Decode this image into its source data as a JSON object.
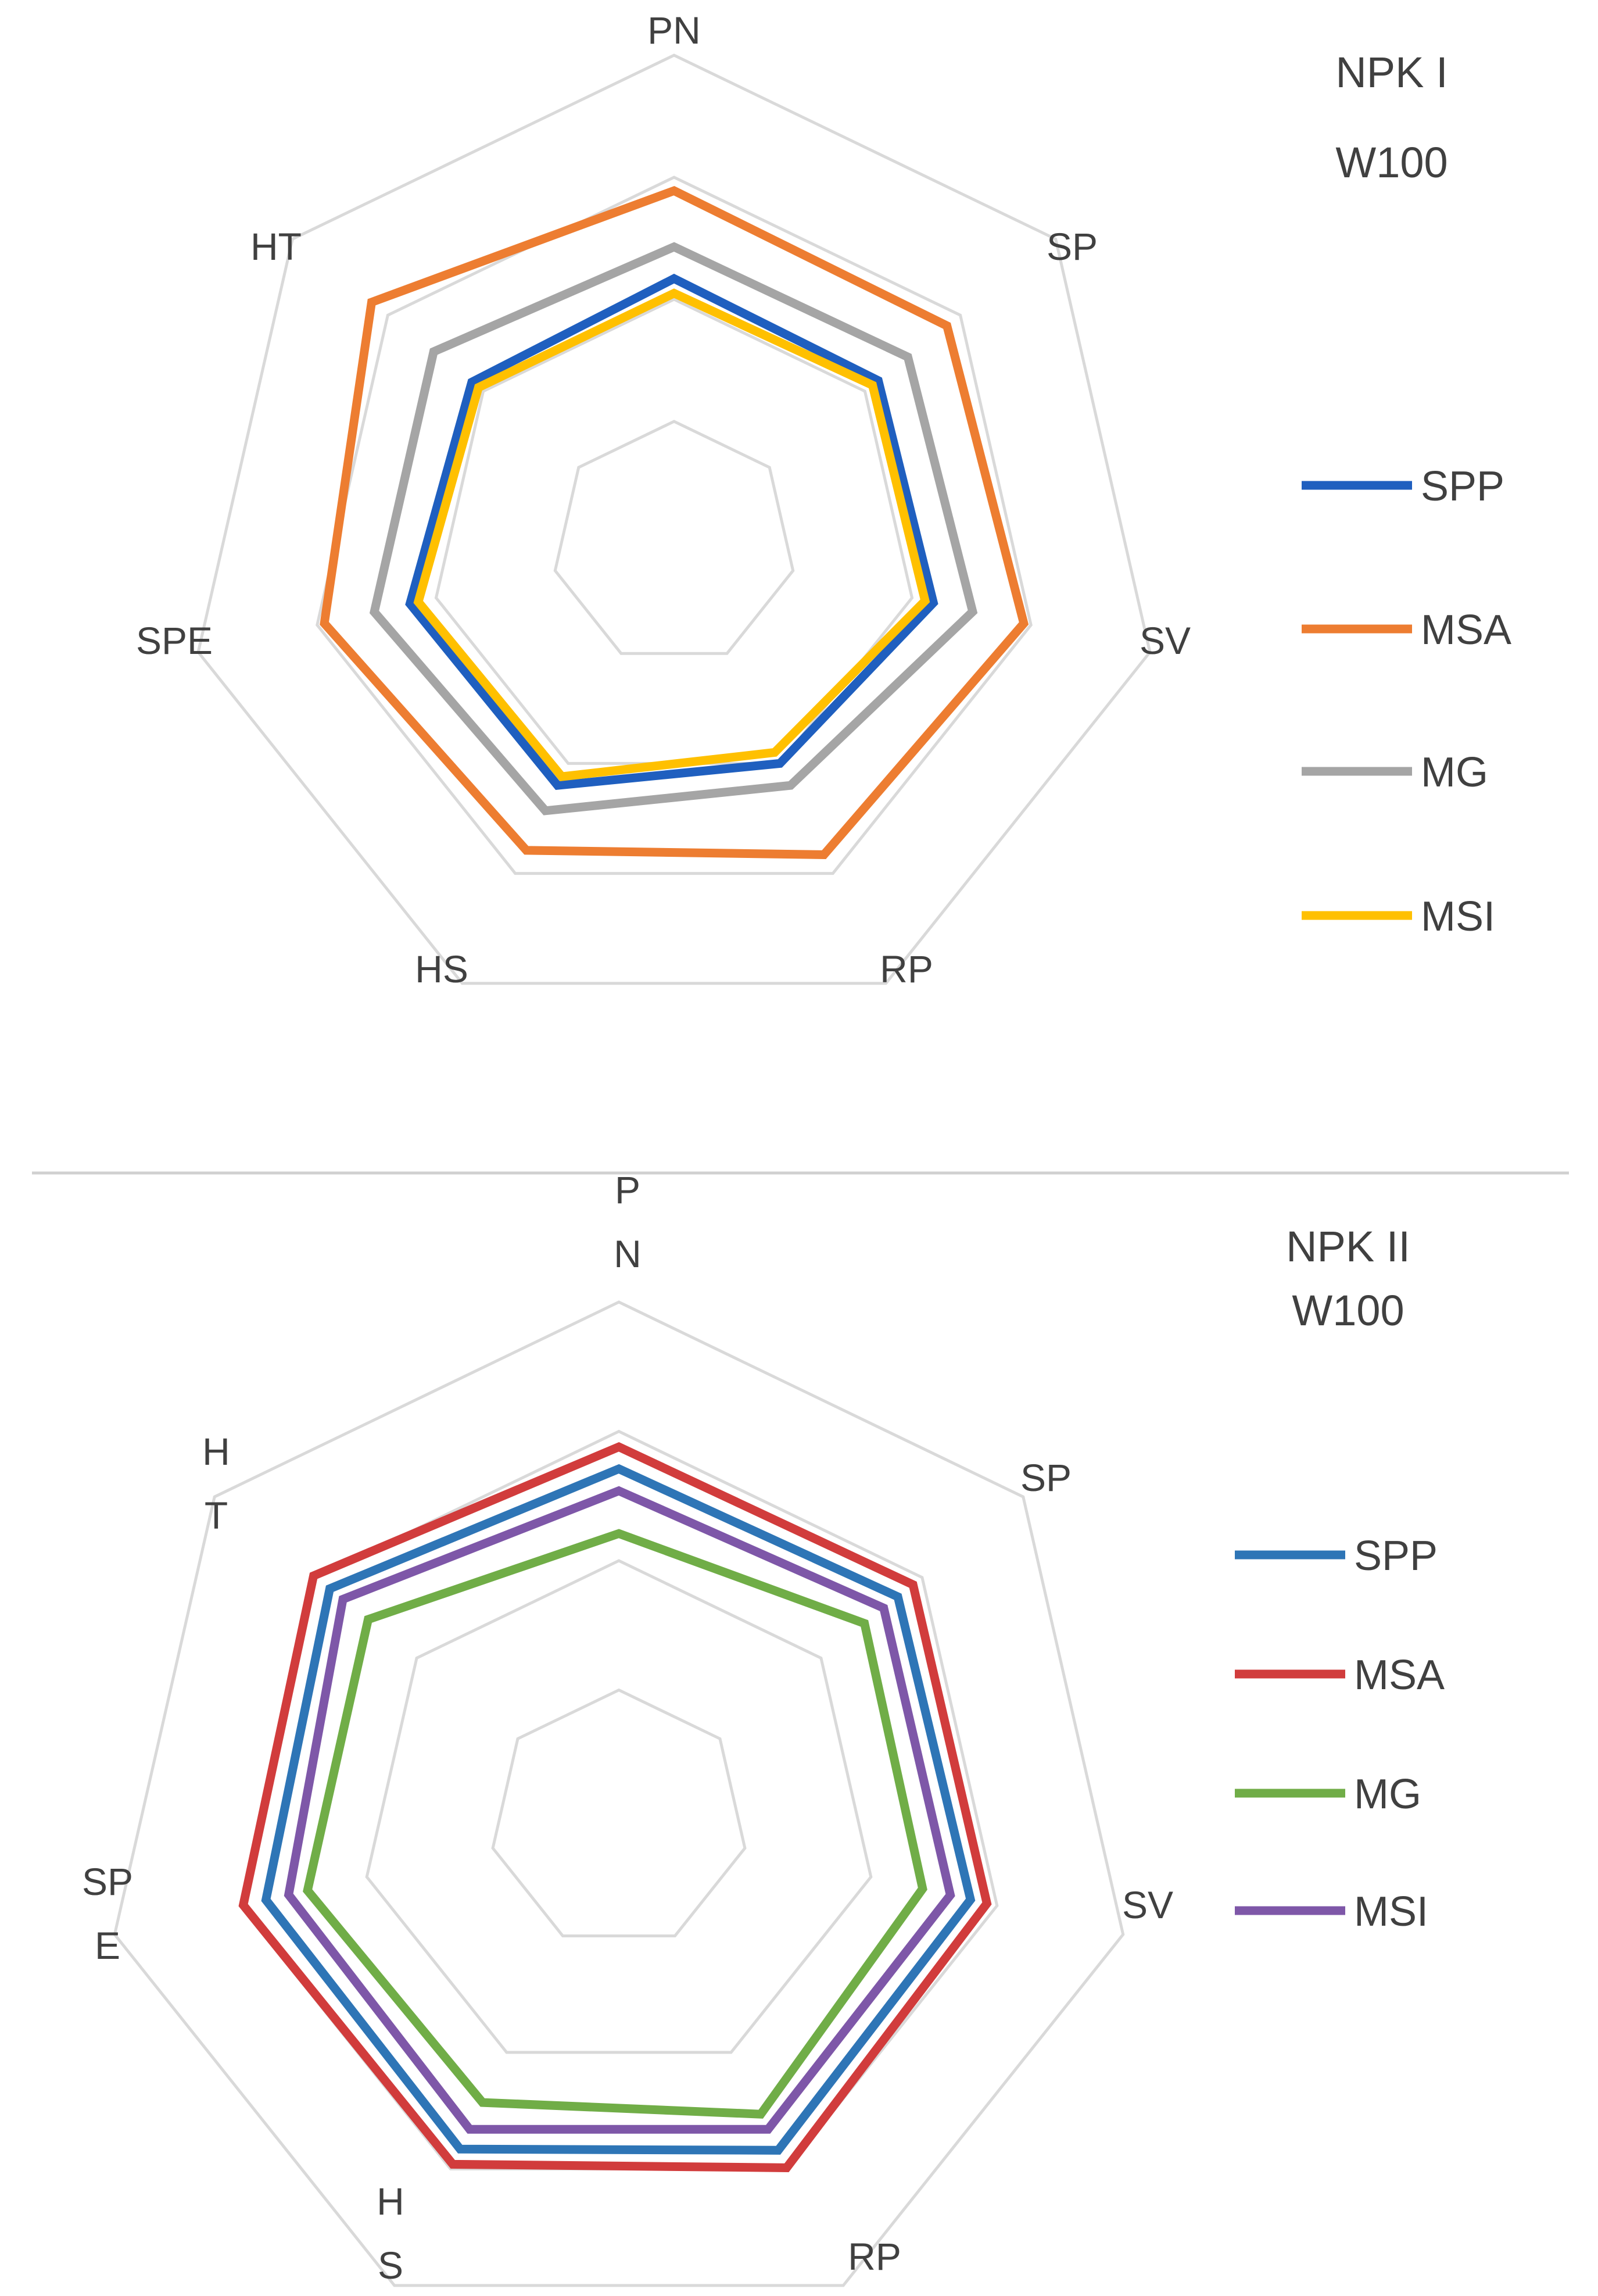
{
  "chart_data": [
    {
      "type": "radar",
      "title": [
        "NPK I",
        "W100"
      ],
      "axes": [
        {
          "key": "PN",
          "label_lines": [
            "PN"
          ]
        },
        {
          "key": "SP",
          "label_lines": [
            "SP"
          ]
        },
        {
          "key": "SV",
          "label_lines": [
            "SV"
          ]
        },
        {
          "key": "RP",
          "label_lines": [
            "RP"
          ]
        },
        {
          "key": "HS",
          "label_lines": [
            "HS"
          ]
        },
        {
          "key": "SPE",
          "label_lines": [
            "SPE"
          ]
        },
        {
          "key": "HT",
          "label_lines": [
            "HT"
          ]
        }
      ],
      "rlim": [
        0,
        4
      ],
      "grid_rings": [
        1,
        2,
        3,
        4
      ],
      "legend_position": "right",
      "series": [
        {
          "name": "SPP",
          "color": "#1f5fbf",
          "values": [
            2.17,
            2.14,
            2.18,
            2.0,
            2.2,
            2.22,
            2.12
          ]
        },
        {
          "name": "MSA",
          "color": "#ed7d31",
          "values": [
            2.89,
            2.86,
            2.94,
            2.83,
            2.79,
            2.94,
            3.17
          ]
        },
        {
          "name": "MG",
          "color": "#a5a5a5",
          "values": [
            2.43,
            2.45,
            2.51,
            2.2,
            2.43,
            2.52,
            2.52
          ]
        },
        {
          "name": "MSI",
          "color": "#ffc000",
          "values": [
            2.05,
            2.08,
            2.11,
            1.9,
            2.12,
            2.15,
            2.05
          ]
        }
      ]
    },
    {
      "type": "radar",
      "title": [
        "NPK II",
        "W100"
      ],
      "axes": [
        {
          "key": "PN",
          "label_lines": [
            "P",
            "N"
          ]
        },
        {
          "key": "SP",
          "label_lines": [
            "SP"
          ]
        },
        {
          "key": "SV",
          "label_lines": [
            "SV"
          ]
        },
        {
          "key": "RP",
          "label_lines": [
            "RP"
          ]
        },
        {
          "key": "HS",
          "label_lines": [
            "H",
            "S"
          ]
        },
        {
          "key": "SPE",
          "label_lines": [
            "SP",
            "E"
          ]
        },
        {
          "key": "HT",
          "label_lines": [
            "H",
            "T"
          ]
        }
      ],
      "rlim": [
        0,
        4
      ],
      "grid_rings": [
        1,
        2,
        3,
        4
      ],
      "legend_position": "right",
      "series": [
        {
          "name": "SPP",
          "color": "#2e75b6",
          "values": [
            2.71,
            2.76,
            2.79,
            2.84,
            2.83,
            2.8,
            2.86
          ]
        },
        {
          "name": "MSA",
          "color": "#d13c3c",
          "values": [
            2.88,
            2.91,
            2.92,
            2.99,
            2.96,
            2.98,
            3.02
          ]
        },
        {
          "name": "MG",
          "color": "#70ad47",
          "values": [
            2.21,
            2.43,
            2.41,
            2.53,
            2.43,
            2.47,
            2.48
          ]
        },
        {
          "name": "MSI",
          "color": "#7e57a8",
          "values": [
            2.54,
            2.62,
            2.63,
            2.66,
            2.66,
            2.62,
            2.73
          ]
        }
      ]
    }
  ]
}
